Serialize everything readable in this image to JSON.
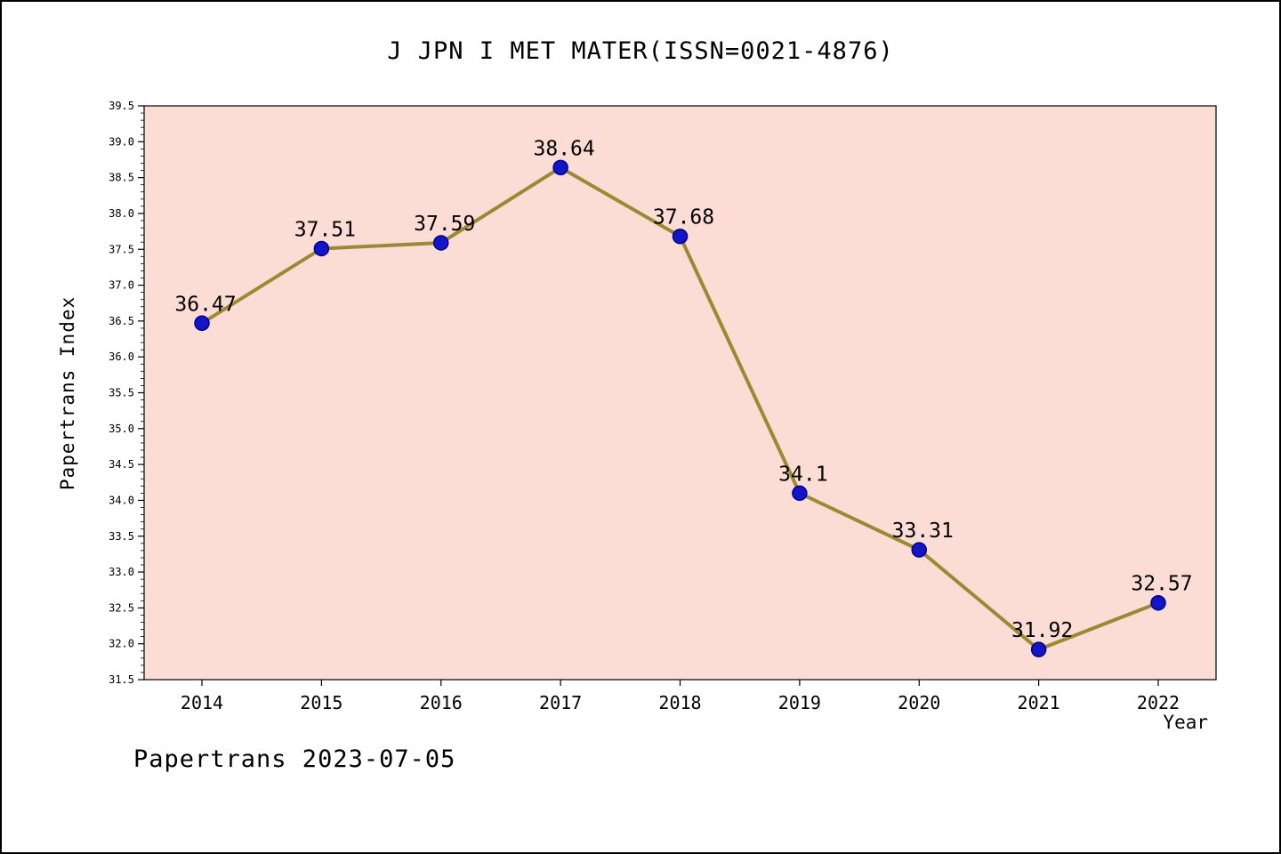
{
  "title": "J JPN I MET MATER(ISSN=0021-4876)",
  "footer": {
    "text": "Papertrans 2023-07-05"
  },
  "chart_data": {
    "type": "line",
    "title": "J JPN I MET MATER(ISSN=0021-4876)",
    "xlabel": "Year",
    "ylabel": "Papertrans Index",
    "categories": [
      2014,
      2015,
      2016,
      2017,
      2018,
      2019,
      2020,
      2021,
      2022
    ],
    "values": [
      36.47,
      37.51,
      37.59,
      38.64,
      37.68,
      34.1,
      33.31,
      31.92,
      32.57
    ],
    "point_labels": [
      "36.47",
      "37.51",
      "37.59",
      "38.64",
      "37.68",
      "34.1",
      "33.31",
      "31.92",
      "32.57"
    ],
    "ylim": [
      31.5,
      39.5
    ],
    "ytick_step": 0.5,
    "ytick_minor_step": 0.1,
    "grid": false,
    "legend_position": "none",
    "colors": {
      "line": "#9a8a33",
      "point_fill": "#1414c8",
      "point_stroke": "#00008b",
      "plot_bg": "#fbddd6",
      "axis": "#000000",
      "text": "#000000"
    }
  }
}
